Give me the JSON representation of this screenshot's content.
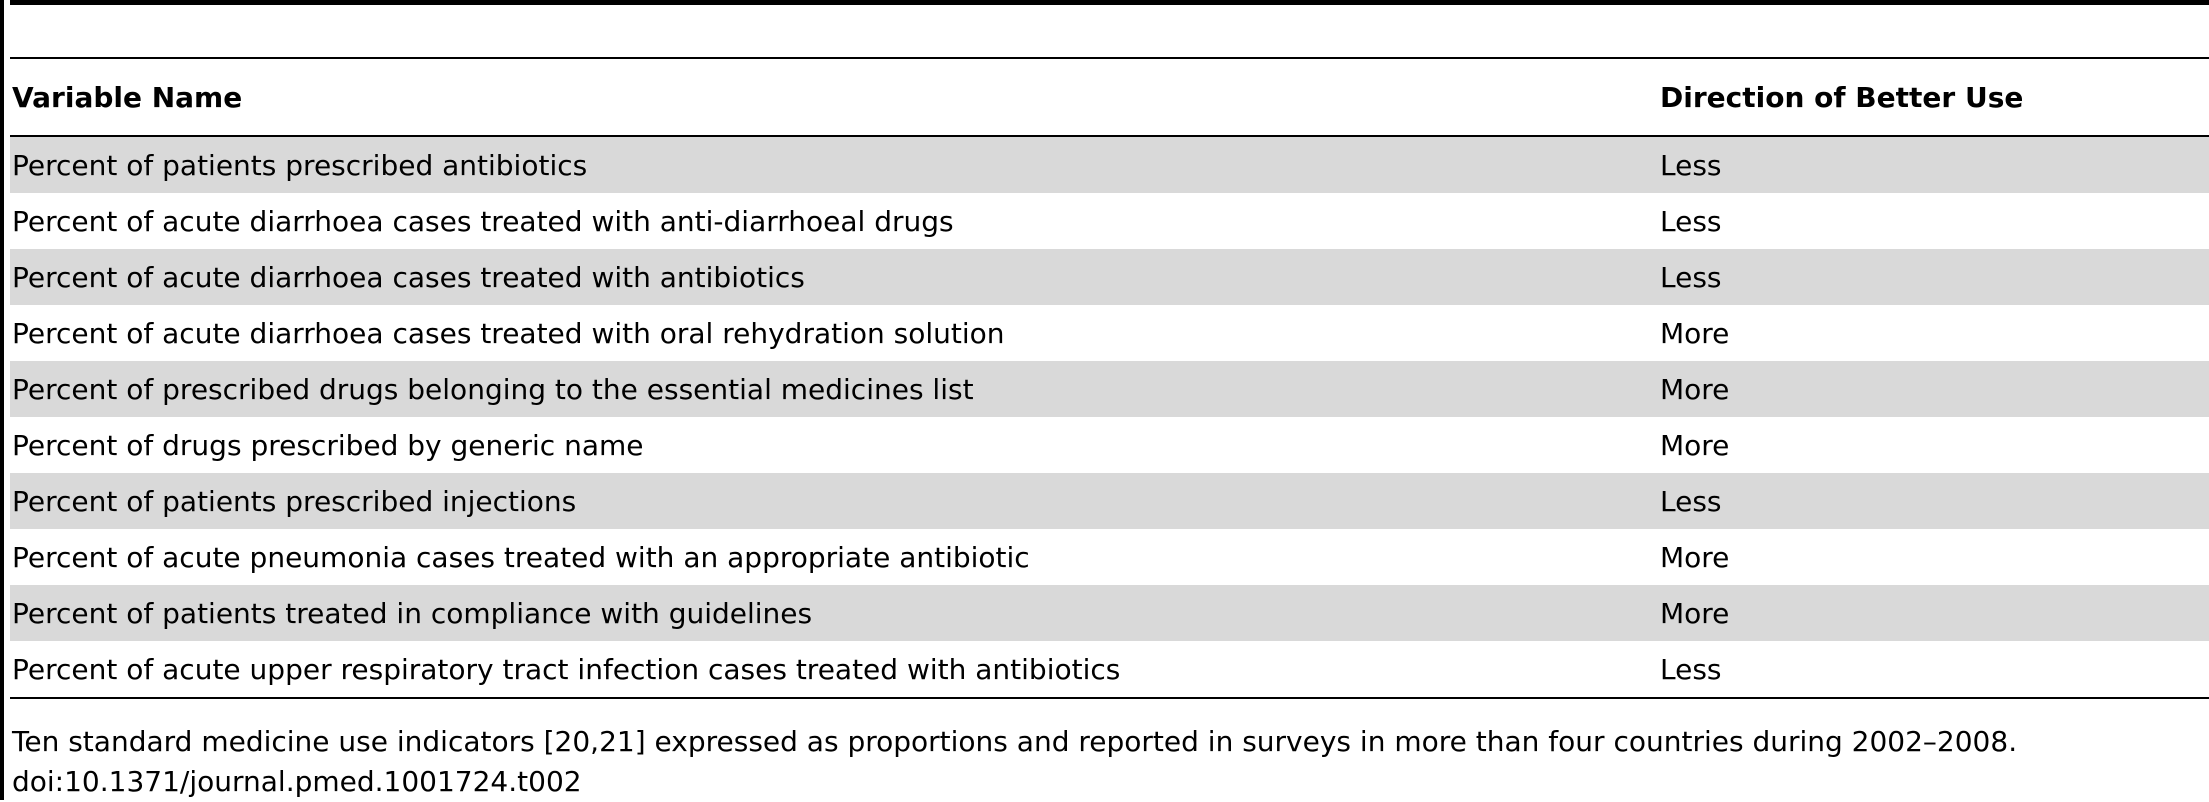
{
  "table": {
    "headers": [
      "Variable Name",
      "Direction of Better Use"
    ],
    "rows": [
      [
        "Percent of patients prescribed antibiotics",
        "Less"
      ],
      [
        "Percent of acute diarrhoea cases treated with anti-diarrhoeal drugs",
        "Less"
      ],
      [
        "Percent of acute diarrhoea cases treated with antibiotics",
        "Less"
      ],
      [
        "Percent of acute diarrhoea cases treated with oral rehydration solution",
        "More"
      ],
      [
        "Percent of prescribed drugs belonging to the essential medicines list",
        "More"
      ],
      [
        "Percent of drugs prescribed by generic name",
        "More"
      ],
      [
        "Percent of patients prescribed injections",
        "Less"
      ],
      [
        "Percent of acute pneumonia cases treated with an appropriate antibiotic",
        "More"
      ],
      [
        "Percent of patients treated in compliance with guidelines",
        "More"
      ],
      [
        "Percent of acute upper respiratory tract infection cases treated with antibiotics",
        "Less"
      ]
    ],
    "row_shading": "#d9d9d9"
  },
  "footnote": {
    "caption": "Ten standard medicine use indicators [20,21] expressed as proportions and reported in surveys in more than four countries during 2002–2008.",
    "doi": "doi:10.1371/journal.pmed.1001724.t002"
  }
}
